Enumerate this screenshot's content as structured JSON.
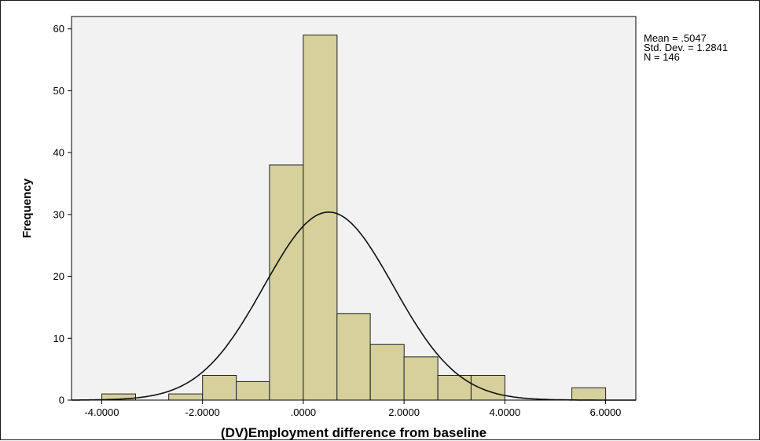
{
  "chart_data": {
    "type": "bar",
    "subtype": "histogram",
    "title": "",
    "xlabel": "(DV)Employment difference from baseline",
    "ylabel": "Frequency",
    "xlim": [
      -4.6,
      6.6
    ],
    "ylim": [
      0,
      62
    ],
    "x_ticks": [
      -4,
      -2,
      0,
      2,
      4,
      6
    ],
    "x_tick_labels": [
      "-4.0000",
      "-2.0000",
      ".0000",
      "2.0000",
      "4.0000",
      "6.0000"
    ],
    "y_ticks": [
      0,
      10,
      20,
      30,
      40,
      50,
      60
    ],
    "y_tick_labels": [
      "0",
      "10",
      "20",
      "30",
      "40",
      "50",
      "60"
    ],
    "bin_width": 0.67,
    "bins": [
      {
        "start": -4.0,
        "end": -3.33,
        "count": 1
      },
      {
        "start": -2.67,
        "end": -2.0,
        "count": 1
      },
      {
        "start": -2.0,
        "end": -1.33,
        "count": 4
      },
      {
        "start": -1.33,
        "end": -0.67,
        "count": 3
      },
      {
        "start": -0.67,
        "end": 0.0,
        "count": 38
      },
      {
        "start": 0.0,
        "end": 0.67,
        "count": 59
      },
      {
        "start": 0.67,
        "end": 1.33,
        "count": 14
      },
      {
        "start": 1.33,
        "end": 2.0,
        "count": 9
      },
      {
        "start": 2.0,
        "end": 2.67,
        "count": 7
      },
      {
        "start": 2.67,
        "end": 3.33,
        "count": 4
      },
      {
        "start": 3.33,
        "end": 4.0,
        "count": 4
      },
      {
        "start": 5.33,
        "end": 6.0,
        "count": 2
      }
    ],
    "normal_curve": {
      "mean": 0.5047,
      "std_dev": 1.2841,
      "n": 146
    },
    "stats": {
      "mean_label": "Mean = .5047",
      "std_label": "Std. Dev. = 1.2841",
      "n_label": "N = 146"
    },
    "grid": false,
    "legend": "none",
    "colors": {
      "bar_fill": "#d5d09c",
      "bar_stroke": "#222222",
      "plot_background": "#f2f2f2",
      "curve": "#111111"
    }
  }
}
